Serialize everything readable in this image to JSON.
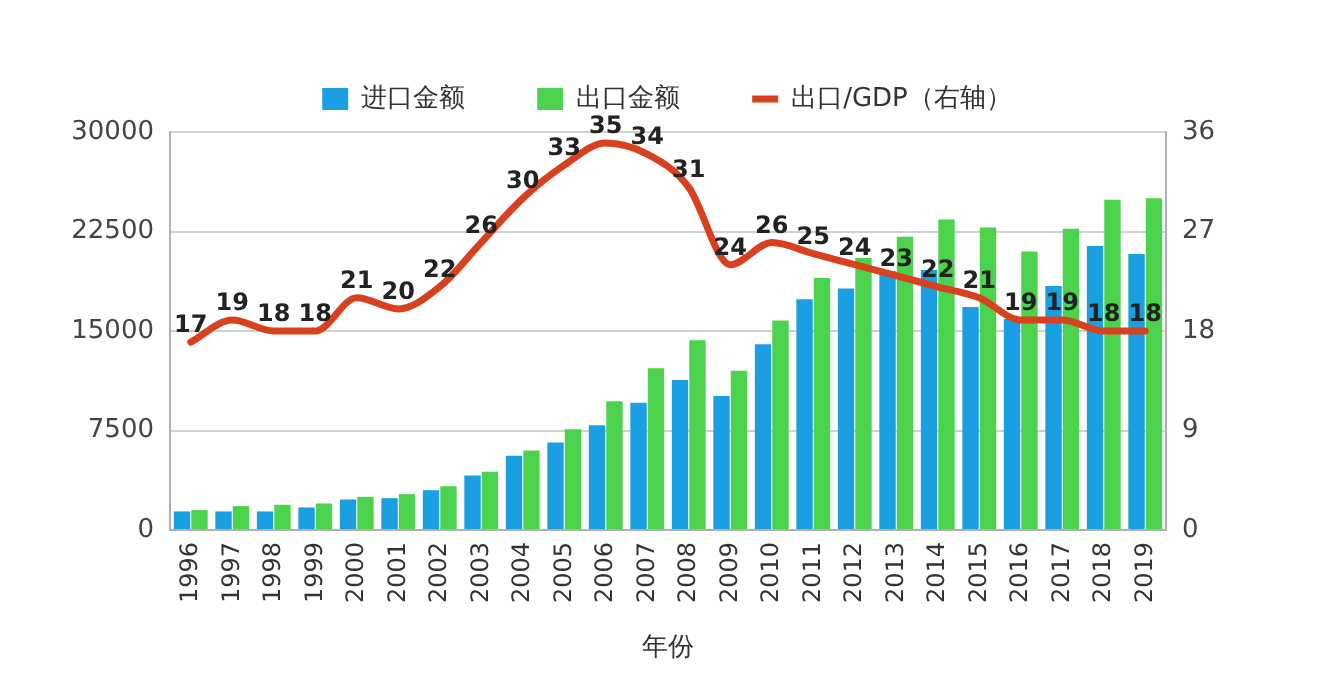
{
  "chart_data": {
    "type": "bar",
    "xlabel": "年份",
    "categories": [
      "1996",
      "1997",
      "1998",
      "1999",
      "2000",
      "2001",
      "2002",
      "2003",
      "2004",
      "2005",
      "2006",
      "2007",
      "2008",
      "2009",
      "2010",
      "2011",
      "2012",
      "2013",
      "2014",
      "2015",
      "2016",
      "2017",
      "2018",
      "2019"
    ],
    "series": [
      {
        "name": "进口金额",
        "color": "#1a9fe2",
        "values": [
          1400,
          1400,
          1400,
          1700,
          2300,
          2400,
          3000,
          4100,
          5600,
          6600,
          7900,
          9600,
          11300,
          10100,
          14000,
          17400,
          18200,
          19500,
          19600,
          16800,
          15900,
          18400,
          21400,
          20800
        ]
      },
      {
        "name": "出口金额",
        "color": "#4cd34d",
        "values": [
          1500,
          1800,
          1900,
          2000,
          2500,
          2700,
          3300,
          4400,
          6000,
          7600,
          9700,
          12200,
          14300,
          12000,
          15800,
          19000,
          20500,
          22100,
          23400,
          22800,
          21000,
          22700,
          24900,
          25000
        ]
      },
      {
        "name": "出口/GDP（右轴）",
        "type": "line",
        "axis": "y2",
        "color": "#d8401e",
        "values": [
          17,
          19,
          18,
          18,
          21,
          20,
          22,
          26,
          30,
          33,
          35,
          34,
          31,
          24,
          26,
          25,
          24,
          23,
          22,
          21,
          19,
          19,
          18,
          18
        ],
        "value_labels": [
          "17",
          "19",
          "18",
          "18",
          "21",
          "20",
          "22",
          "26",
          "30",
          "33",
          "35",
          "34",
          "31",
          "24",
          "26",
          "25",
          "24",
          "23",
          "22",
          "21",
          "19",
          "19",
          "18",
          "18"
        ]
      }
    ],
    "ylim": [
      0,
      30000
    ],
    "yticks": [
      0,
      7500,
      15000,
      22500,
      30000
    ],
    "y2lim": [
      0,
      36
    ],
    "y2ticks": [
      0,
      9,
      18,
      27,
      36
    ],
    "grid": "y",
    "legend": "top",
    "marker": "none"
  }
}
